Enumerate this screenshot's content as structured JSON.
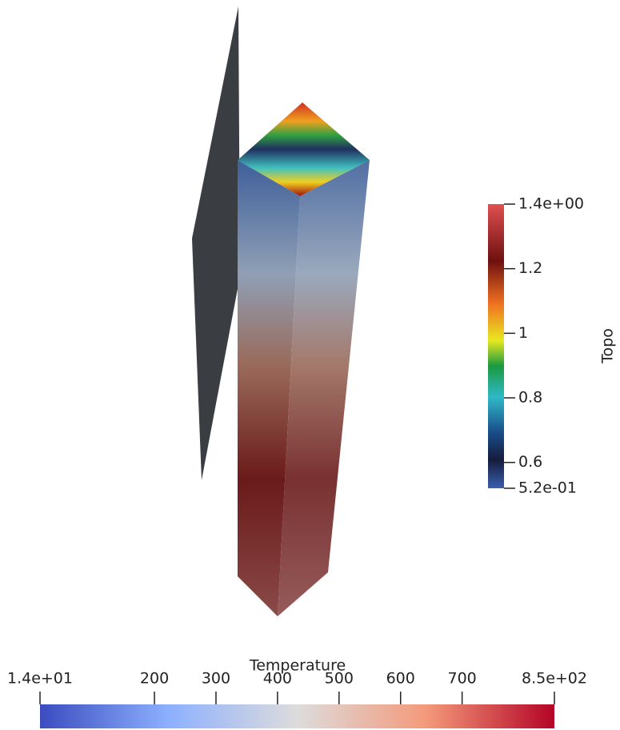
{
  "colorbars": [
    {
      "title": "Temperature",
      "range": [
        14,
        850
      ],
      "ticks": [
        {
          "value": 14,
          "label": "1.4e+01"
        },
        200,
        300,
        400,
        500,
        600,
        700,
        {
          "value": 850,
          "label": "8.5e+02"
        }
      ]
    },
    {
      "title": "Topo",
      "range": [
        0.52,
        1.4
      ],
      "ticks": [
        {
          "value": 1.4,
          "label": "1.4e+00"
        },
        1.2,
        1,
        0.8,
        0.6,
        {
          "value": 0.52,
          "label": "5.2e-01"
        }
      ]
    }
  ]
}
